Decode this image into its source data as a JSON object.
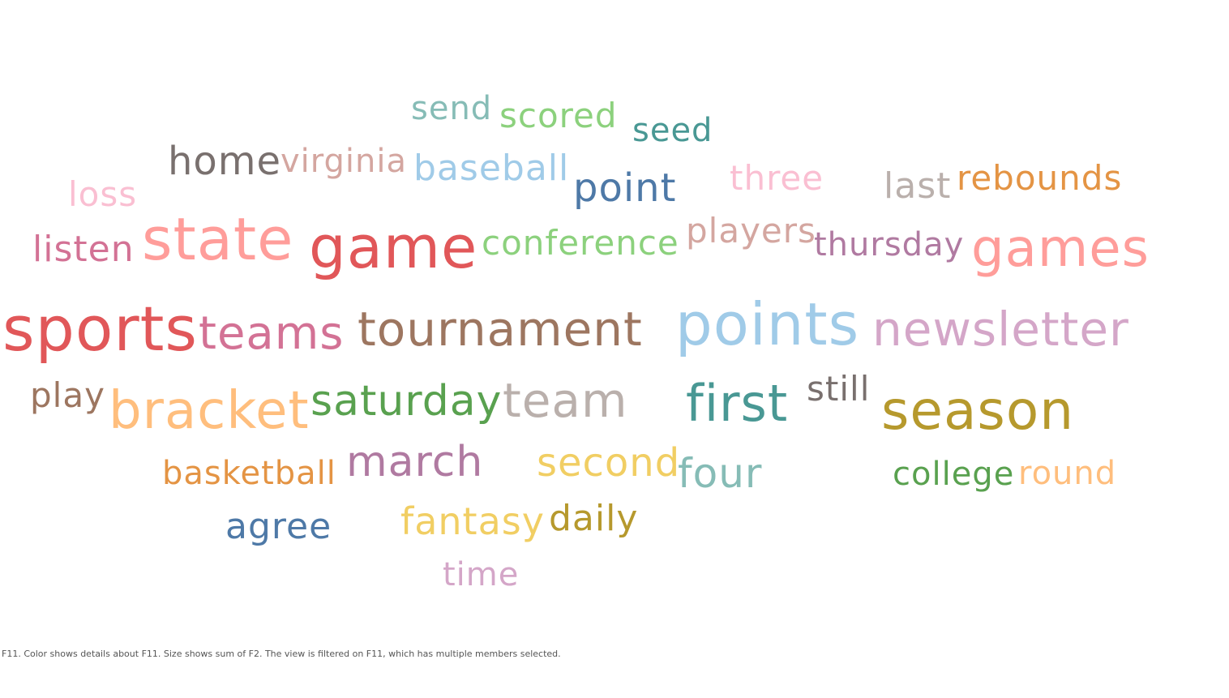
{
  "chart_data": {
    "type": "wordcloud",
    "words": [
      {
        "text": "send",
        "color": "#86bcb6"
      },
      {
        "text": "scored",
        "color": "#8cd17d"
      },
      {
        "text": "seed",
        "color": "#499894"
      },
      {
        "text": "home",
        "color": "#79706e"
      },
      {
        "text": "virginia",
        "color": "#d4a6a0"
      },
      {
        "text": "baseball",
        "color": "#a0cbe8"
      },
      {
        "text": "point",
        "color": "#4e79a7"
      },
      {
        "text": "three",
        "color": "#fabfd2"
      },
      {
        "text": "last",
        "color": "#bab0ac"
      },
      {
        "text": "rebounds",
        "color": "#e49444"
      },
      {
        "text": "loss",
        "color": "#fabfd2"
      },
      {
        "text": "listen",
        "color": "#d37295"
      },
      {
        "text": "state",
        "color": "#ff9d9a"
      },
      {
        "text": "game",
        "color": "#e15759"
      },
      {
        "text": "conference",
        "color": "#8cd17d"
      },
      {
        "text": "players",
        "color": "#d4a6a0"
      },
      {
        "text": "thursday",
        "color": "#b07aa1"
      },
      {
        "text": "games",
        "color": "#ff9d9a"
      },
      {
        "text": "sports",
        "color": "#e15759"
      },
      {
        "text": "teams",
        "color": "#d37295"
      },
      {
        "text": "tournament",
        "color": "#9d7660"
      },
      {
        "text": "points",
        "color": "#a0cbe8"
      },
      {
        "text": "newsletter",
        "color": "#d4a6c8"
      },
      {
        "text": "play",
        "color": "#9d7660"
      },
      {
        "text": "bracket",
        "color": "#ffbe7d"
      },
      {
        "text": "saturday",
        "color": "#59a14f"
      },
      {
        "text": "team",
        "color": "#bab0ac"
      },
      {
        "text": "first",
        "color": "#499894"
      },
      {
        "text": "still",
        "color": "#79706e"
      },
      {
        "text": "season",
        "color": "#b6992d"
      },
      {
        "text": "basketball",
        "color": "#e49444"
      },
      {
        "text": "march",
        "color": "#b07aa1"
      },
      {
        "text": "second",
        "color": "#f1ce63"
      },
      {
        "text": "four",
        "color": "#86bcb6"
      },
      {
        "text": "college",
        "color": "#59a14f"
      },
      {
        "text": "round",
        "color": "#ffbe7d"
      },
      {
        "text": "agree",
        "color": "#4e79a7"
      },
      {
        "text": "fantasy",
        "color": "#f1ce63"
      },
      {
        "text": "daily",
        "color": "#b6992d"
      },
      {
        "text": "time",
        "color": "#d4a6c8"
      }
    ]
  },
  "caption": "F11.  Color shows details about F11.  Size shows sum of F2. The view is filtered on F11, which has multiple members selected."
}
